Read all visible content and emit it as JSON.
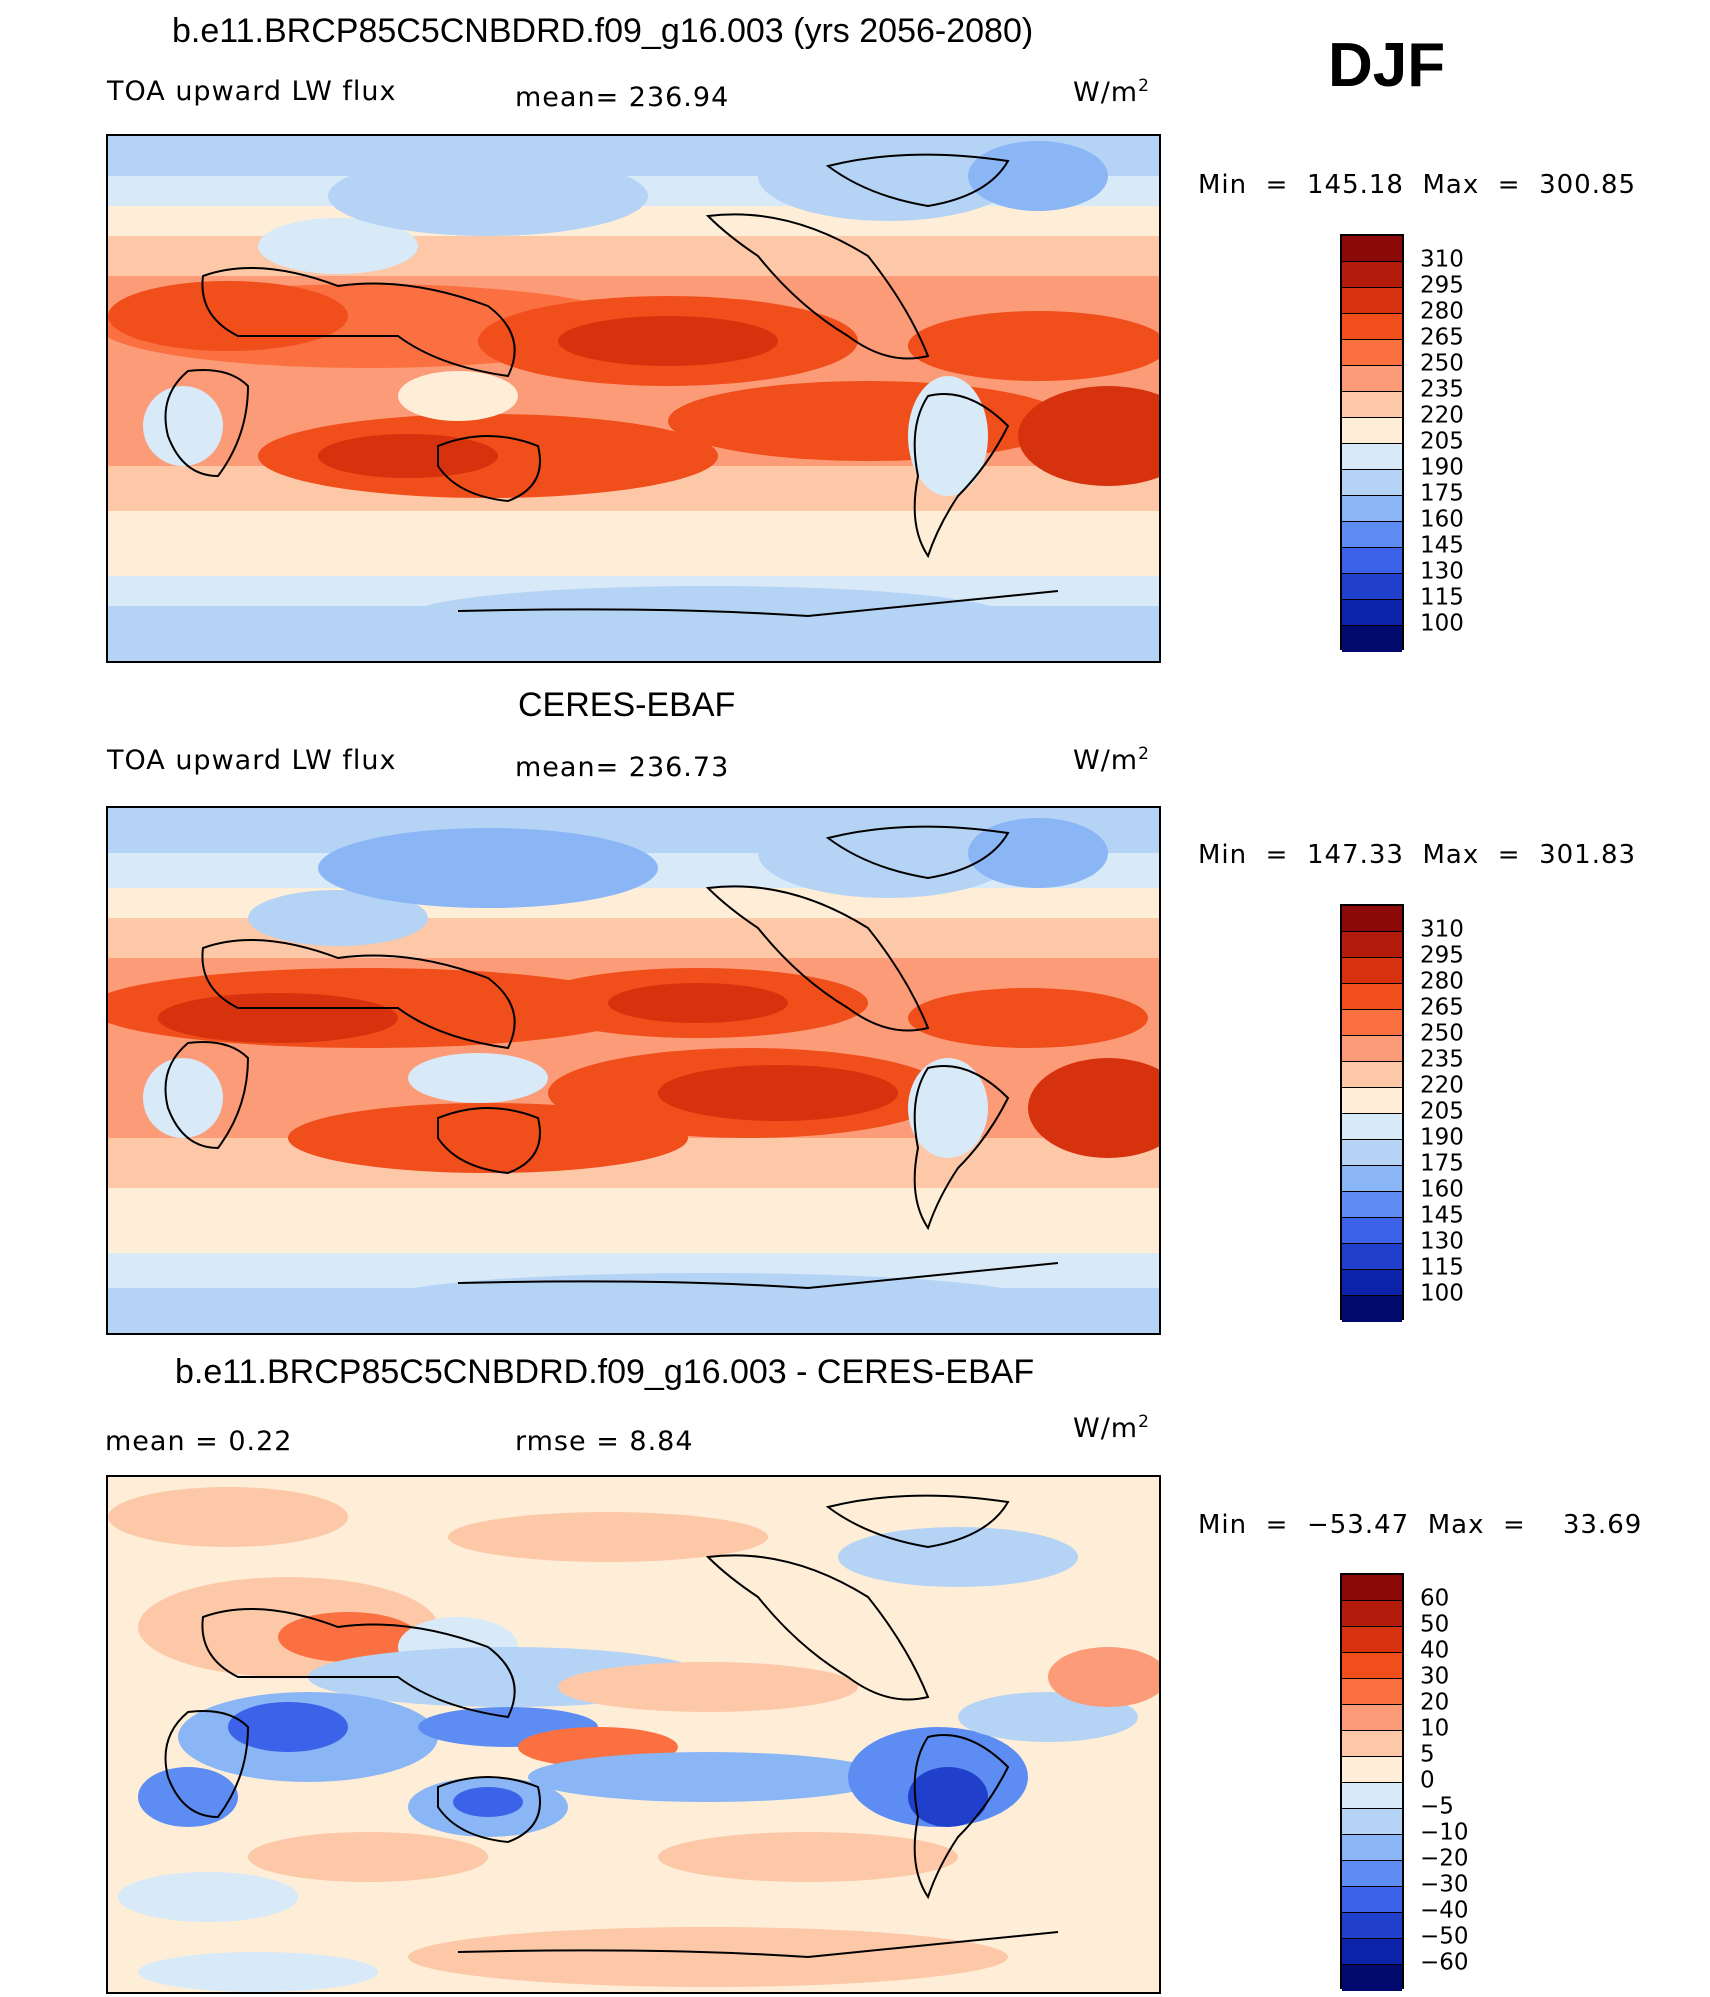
{
  "header": {
    "season": "DJF"
  },
  "panels": [
    {
      "id": "model",
      "title": "b.e11.BRCP85C5CNBDRD.f09_g16.003 (yrs 2056-2080)",
      "left_label": "TOA upward LW flux",
      "mid_label": "mean=  236.94",
      "units_base": "W/m",
      "units_exp": "2",
      "minmax": "Min  =  145.18  Max  =  300.85",
      "scale": "abs"
    },
    {
      "id": "obs",
      "title": "CERES-EBAF",
      "left_label": "TOA upward LW flux",
      "mid_label": "mean=  236.73",
      "units_base": "W/m",
      "units_exp": "2",
      "minmax": "Min  =  147.33  Max  =  301.83",
      "scale": "abs"
    },
    {
      "id": "diff",
      "title": "b.e11.BRCP85C5CNBDRD.f09_g16.003 - CERES-EBAF",
      "left_label": "mean =     0.22",
      "mid_label": "rmse =     8.84",
      "units_base": "W/m",
      "units_exp": "2",
      "minmax": "Min  =  −53.47  Max  =    33.69",
      "scale": "diff"
    }
  ],
  "colorbars": {
    "abs": {
      "labels": [
        "310",
        "295",
        "280",
        "265",
        "250",
        "235",
        "220",
        "205",
        "190",
        "175",
        "160",
        "145",
        "130",
        "115",
        "100"
      ],
      "colors": [
        "#8c0a0a",
        "#b31c0a",
        "#d6320e",
        "#f04e1a",
        "#fb7040",
        "#fc9b78",
        "#fdc8a8",
        "#feeed8",
        "#d8e9f8",
        "#b5d3f5",
        "#8bb6f5",
        "#5d8df2",
        "#3b62e8",
        "#2040cc",
        "#0c22a8",
        "#020a6e"
      ]
    },
    "diff": {
      "labels": [
        "60",
        "50",
        "40",
        "30",
        "20",
        "10",
        "5",
        "0",
        "−5",
        "−10",
        "−20",
        "−30",
        "−40",
        "−50",
        "−60"
      ],
      "colors": [
        "#8c0a0a",
        "#b31c0a",
        "#d6320e",
        "#f04e1a",
        "#fb7040",
        "#fc9b78",
        "#fdc8a8",
        "#feeed8",
        "#d8e9f8",
        "#b5d3f5",
        "#8bb6f5",
        "#5d8df2",
        "#3b62e8",
        "#2040cc",
        "#0c22a8",
        "#020a6e"
      ]
    }
  }
}
